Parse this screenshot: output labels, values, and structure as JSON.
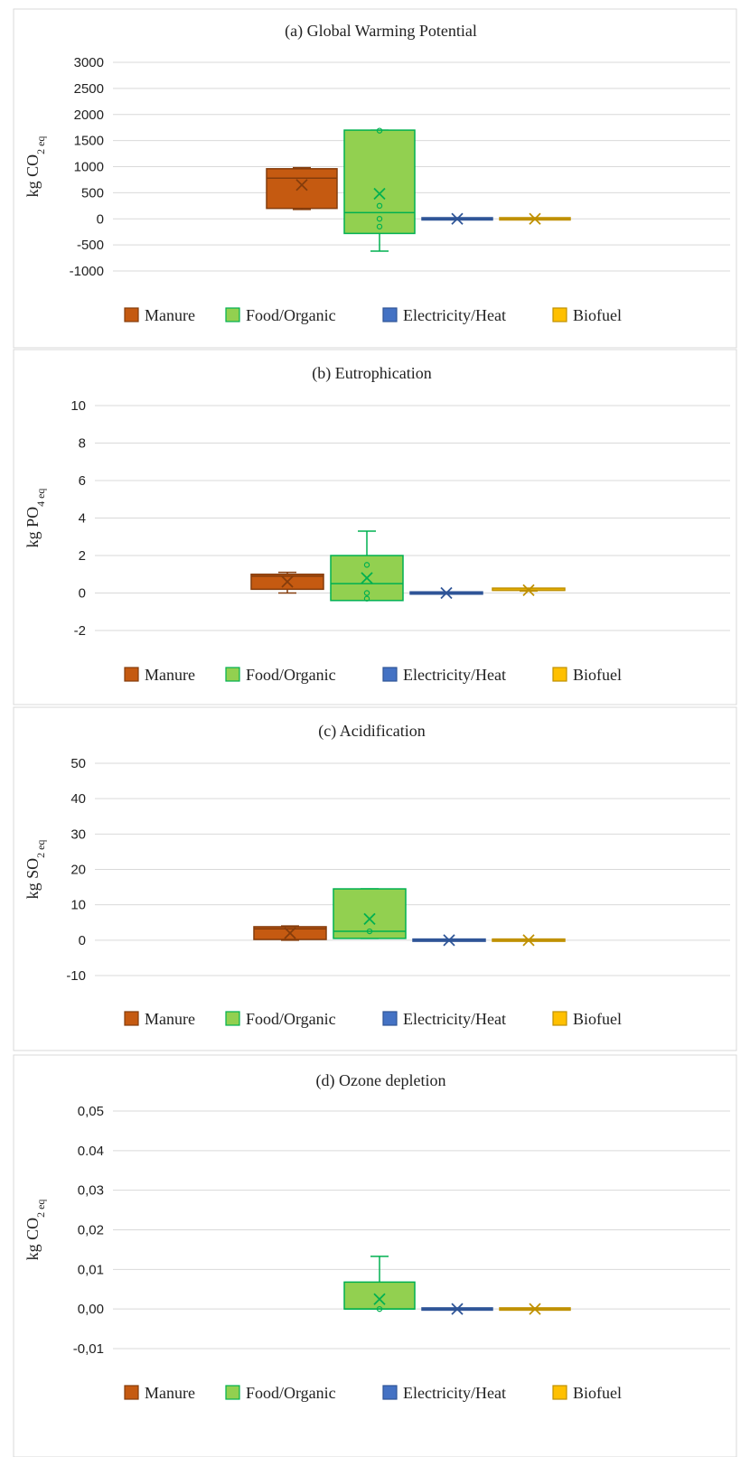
{
  "colors": {
    "Manure": "#c55a11",
    "Food/Organic": "#92d050",
    "Electricity/Heat": "#4472c4",
    "Biofuel": "#ffc000",
    "Manure_dark": "#843c0c",
    "Food/Organic_dark": "#00b050",
    "Electricity/Heat_dark": "#2f5597",
    "Biofuel_dark": "#bf9000"
  },
  "chart_data": [
    {
      "type": "box",
      "title": "(a) Global Warming Potential",
      "ylabel_main": "kg CO",
      "ylabel_sub": "2 eq",
      "yticks": [
        "3000",
        "2500",
        "2000",
        "1500",
        "1000",
        "500",
        "0",
        "-500",
        "-1000"
      ],
      "ylim": [
        -1000,
        3000
      ],
      "legend": [
        "Manure",
        "Food/Organic",
        "Electricity/Heat",
        "Biofuel"
      ],
      "series": [
        {
          "name": "Manure",
          "min": 180,
          "q1": 200,
          "median": 780,
          "q3": 960,
          "max": 980,
          "mean": 650,
          "points": []
        },
        {
          "name": "Food/Organic",
          "min": -620,
          "q1": -280,
          "median": 120,
          "q3": 1700,
          "max": 1700,
          "mean": 480,
          "points": [
            1690,
            250,
            0,
            -150
          ]
        },
        {
          "name": "Electricity/Heat",
          "min": 0,
          "q1": 0,
          "median": 0,
          "q3": 0,
          "max": 0,
          "mean": 0,
          "points": []
        },
        {
          "name": "Biofuel",
          "min": 0,
          "q1": 0,
          "median": 0,
          "q3": 0,
          "max": 0,
          "mean": 0,
          "points": []
        }
      ]
    },
    {
      "type": "box",
      "title": "(b) Eutrophication",
      "ylabel_main": "kg PO",
      "ylabel_sub": "4 eq",
      "yticks": [
        "10",
        "8",
        "6",
        "4",
        "2",
        "0",
        "-2"
      ],
      "ylim": [
        -2,
        10
      ],
      "legend": [
        "Manure",
        "Food/Organic",
        "Electricity/Heat",
        "Biofuel"
      ],
      "series": [
        {
          "name": "Manure",
          "min": 0.0,
          "q1": 0.2,
          "median": 0.9,
          "q3": 1.0,
          "max": 1.1,
          "mean": 0.6,
          "points": []
        },
        {
          "name": "Food/Organic",
          "min": -0.4,
          "q1": -0.4,
          "median": 0.5,
          "q3": 2.0,
          "max": 3.3,
          "mean": 0.8,
          "points": [
            1.5,
            0.0,
            -0.3
          ]
        },
        {
          "name": "Electricity/Heat",
          "min": 0,
          "q1": 0,
          "median": 0,
          "q3": 0,
          "max": 0,
          "mean": 0,
          "points": []
        },
        {
          "name": "Biofuel",
          "min": 0.1,
          "q1": 0.1,
          "median": 0.15,
          "q3": 0.2,
          "max": 0.2,
          "mean": 0.15,
          "points": []
        }
      ]
    },
    {
      "type": "box",
      "title": "(c) Acidification",
      "ylabel_main": "kg SO",
      "ylabel_sub": "2 eq",
      "yticks": [
        "50",
        "40",
        "30",
        "20",
        "10",
        "0",
        "-10"
      ],
      "ylim": [
        -10,
        50
      ],
      "legend": [
        "Manure",
        "Food/Organic",
        "Electricity/Heat",
        "Biofuel"
      ],
      "series": [
        {
          "name": "Manure",
          "min": 0,
          "q1": 0.2,
          "median": 3.2,
          "q3": 3.8,
          "max": 4,
          "mean": 2,
          "points": []
        },
        {
          "name": "Food/Organic",
          "min": 0.5,
          "q1": 0.5,
          "median": 2.5,
          "q3": 14.5,
          "max": 14.5,
          "mean": 6,
          "points": [
            2.5
          ]
        },
        {
          "name": "Electricity/Heat",
          "min": 0,
          "q1": 0,
          "median": 0,
          "q3": 0,
          "max": 0,
          "mean": 0,
          "points": []
        },
        {
          "name": "Biofuel",
          "min": 0,
          "q1": 0,
          "median": 0,
          "q3": 0,
          "max": 0,
          "mean": 0,
          "points": []
        }
      ]
    },
    {
      "type": "box",
      "title": "(d) Ozone depletion",
      "ylabel_main": "kg CO",
      "ylabel_sub": "2 eq",
      "yticks": [
        "0,05",
        "0.04",
        "0,03",
        "0,02",
        "0,01",
        "0,00",
        "-0,01"
      ],
      "ylim": [
        -0.01,
        0.05
      ],
      "legend": [
        "Manure",
        "Food/Organic",
        "Electricity/Heat",
        "Biofuel"
      ],
      "series": [
        {
          "name": "Manure",
          "min": null,
          "q1": null,
          "median": null,
          "q3": null,
          "max": null,
          "mean": null,
          "points": []
        },
        {
          "name": "Food/Organic",
          "min": 0.0,
          "q1": 0.0,
          "median": 0.0,
          "q3": 0.0068,
          "max": 0.0133,
          "mean": 0.0025,
          "points": [
            0.0
          ]
        },
        {
          "name": "Electricity/Heat",
          "min": 0,
          "q1": 0,
          "median": 0,
          "q3": 0,
          "max": 0,
          "mean": 0,
          "points": []
        },
        {
          "name": "Biofuel",
          "min": 0,
          "q1": 0,
          "median": 0,
          "q3": 0,
          "max": 0,
          "mean": 0,
          "points": []
        }
      ]
    }
  ]
}
